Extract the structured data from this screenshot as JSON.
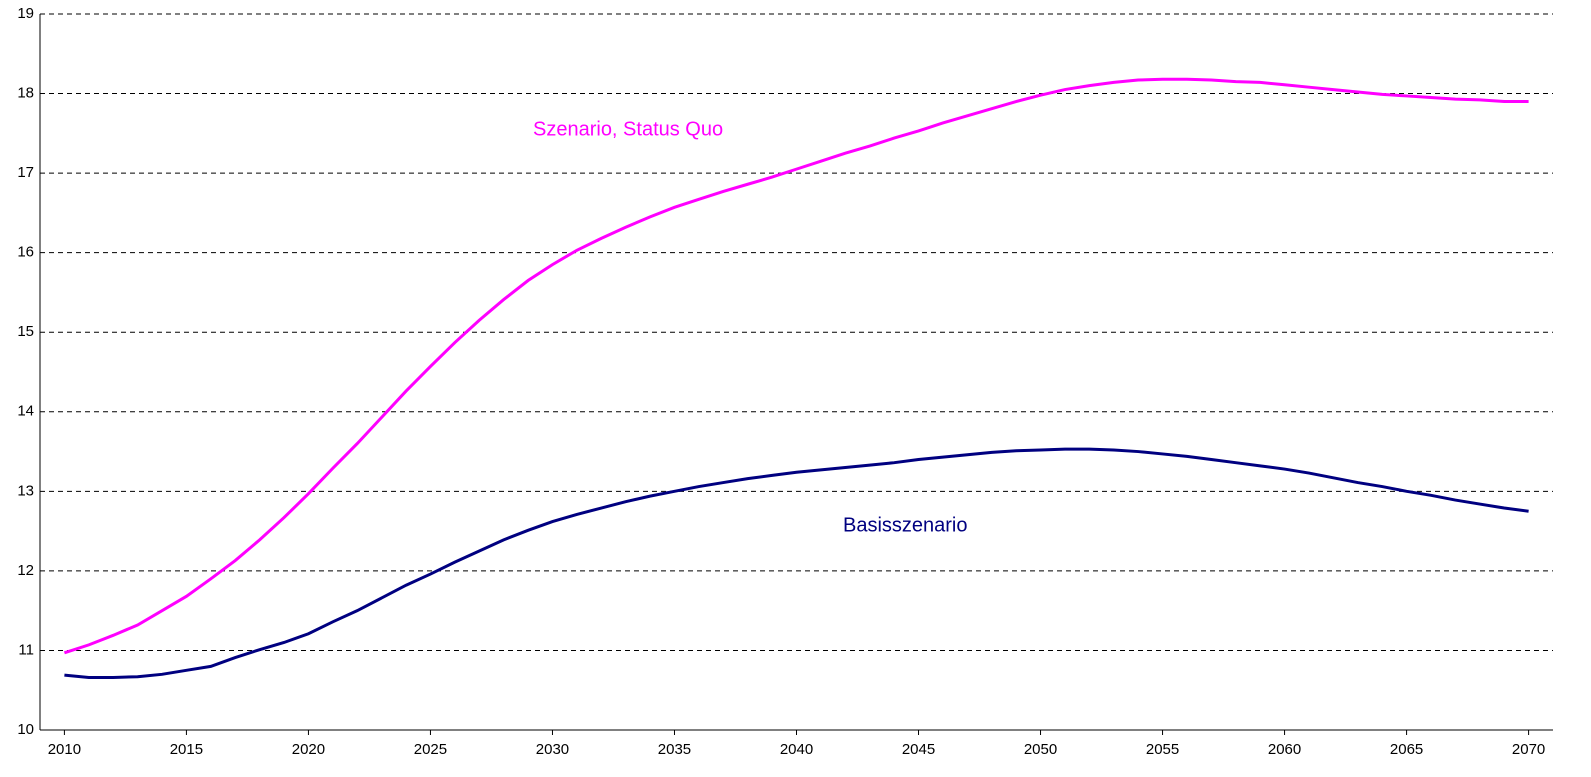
{
  "chart_data": {
    "type": "line",
    "x": [
      2010,
      2011,
      2012,
      2013,
      2014,
      2015,
      2016,
      2017,
      2018,
      2019,
      2020,
      2021,
      2022,
      2023,
      2024,
      2025,
      2026,
      2027,
      2028,
      2029,
      2030,
      2031,
      2032,
      2033,
      2034,
      2035,
      2036,
      2037,
      2038,
      2039,
      2040,
      2041,
      2042,
      2043,
      2044,
      2045,
      2046,
      2047,
      2048,
      2049,
      2050,
      2051,
      2052,
      2053,
      2054,
      2055,
      2056,
      2057,
      2058,
      2059,
      2060,
      2061,
      2062,
      2063,
      2064,
      2065,
      2066,
      2067,
      2068,
      2069,
      2070
    ],
    "series": [
      {
        "name": "Szenario, Status Quo",
        "color": "#ff00ff",
        "values": [
          10.97,
          11.07,
          11.19,
          11.32,
          11.5,
          11.68,
          11.9,
          12.13,
          12.39,
          12.67,
          12.97,
          13.29,
          13.6,
          13.93,
          14.26,
          14.57,
          14.87,
          15.15,
          15.41,
          15.65,
          15.85,
          16.03,
          16.18,
          16.32,
          16.45,
          16.57,
          16.67,
          16.77,
          16.86,
          16.95,
          17.05,
          17.15,
          17.25,
          17.34,
          17.44,
          17.53,
          17.63,
          17.72,
          17.81,
          17.9,
          17.98,
          18.05,
          18.1,
          18.14,
          18.17,
          18.18,
          18.18,
          18.17,
          18.15,
          18.14,
          18.11,
          18.08,
          18.05,
          18.02,
          17.99,
          17.97,
          17.95,
          17.93,
          17.92,
          17.9,
          17.9
        ]
      },
      {
        "name": "Basisszenario",
        "color": "#000080",
        "values": [
          10.69,
          10.66,
          10.66,
          10.67,
          10.7,
          10.75,
          10.8,
          10.91,
          11.01,
          11.1,
          11.21,
          11.36,
          11.5,
          11.66,
          11.82,
          11.96,
          12.11,
          12.25,
          12.39,
          12.51,
          12.62,
          12.71,
          12.79,
          12.87,
          12.94,
          13.0,
          13.06,
          13.11,
          13.16,
          13.2,
          13.24,
          13.27,
          13.3,
          13.33,
          13.36,
          13.4,
          13.43,
          13.46,
          13.49,
          13.51,
          13.52,
          13.53,
          13.53,
          13.52,
          13.5,
          13.47,
          13.44,
          13.4,
          13.36,
          13.32,
          13.28,
          13.23,
          13.17,
          13.11,
          13.06,
          13.0,
          12.95,
          12.89,
          12.84,
          12.79,
          12.75
        ]
      }
    ],
    "xlim": [
      2009,
      2071
    ],
    "xticks": [
      2010,
      2015,
      2020,
      2025,
      2030,
      2035,
      2040,
      2045,
      2050,
      2055,
      2060,
      2065,
      2070
    ],
    "ylim": [
      10,
      19
    ],
    "yticks": [
      10,
      11,
      12,
      13,
      14,
      15,
      16,
      17,
      18,
      19
    ],
    "grid": true
  }
}
